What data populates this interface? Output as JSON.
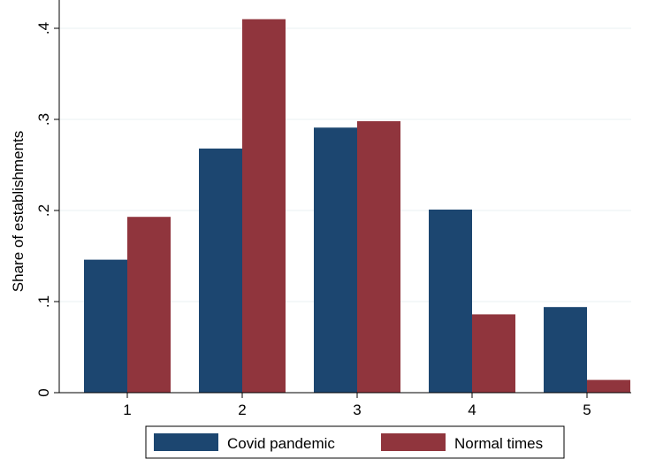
{
  "chart_data": {
    "type": "bar",
    "title": "",
    "xlabel": "",
    "ylabel": "Share of establishments",
    "categories": [
      "1",
      "2",
      "3",
      "4",
      "5"
    ],
    "series": [
      {
        "name": "Covid pandemic",
        "color": "#1c4670",
        "values": [
          0.146,
          0.268,
          0.291,
          0.201,
          0.094
        ]
      },
      {
        "name": "Normal times",
        "color": "#90353d",
        "values": [
          0.193,
          0.41,
          0.298,
          0.086,
          0.014
        ]
      }
    ],
    "ylim": [
      0,
      0.4
    ],
    "yticks": [
      0,
      0.1,
      0.2,
      0.3,
      0.4
    ],
    "ytick_labels": [
      "0",
      ".1",
      ".2",
      ".3",
      ".4"
    ],
    "grid": true,
    "legend_position": "bottom"
  }
}
